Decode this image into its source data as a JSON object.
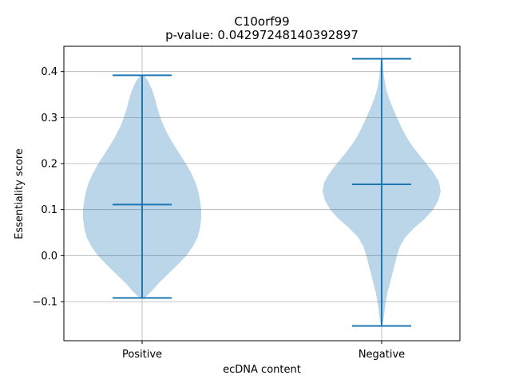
{
  "chart_data": {
    "type": "violin",
    "title": "C10orf99",
    "subtitle": "p-value: 0.04297248140392897",
    "xlabel": "ecDNA content",
    "ylabel": "Essentiality score",
    "categories": [
      "Positive",
      "Negative"
    ],
    "ylim": [
      -0.185,
      0.455
    ],
    "yticks": [
      -0.1,
      0.0,
      0.1,
      0.2,
      0.3,
      0.4
    ],
    "ytick_labels": [
      "−0.1",
      "0.0",
      "0.1",
      "0.2",
      "0.3",
      "0.4"
    ],
    "grid": true,
    "color": "#1f77b4",
    "fill_color": "#1f77b4",
    "fill_opacity": 0.3,
    "violins": [
      {
        "category": "Positive",
        "min": -0.092,
        "max": 0.392,
        "median": 0.111,
        "density": [
          [
            -0.092,
            0.04
          ],
          [
            -0.08,
            0.14
          ],
          [
            -0.06,
            0.28
          ],
          [
            -0.04,
            0.44
          ],
          [
            -0.02,
            0.6
          ],
          [
            0.0,
            0.75
          ],
          [
            0.02,
            0.86
          ],
          [
            0.04,
            0.94
          ],
          [
            0.06,
            0.98
          ],
          [
            0.08,
            1.0
          ],
          [
            0.1,
            1.0
          ],
          [
            0.12,
            0.98
          ],
          [
            0.14,
            0.95
          ],
          [
            0.16,
            0.9
          ],
          [
            0.18,
            0.83
          ],
          [
            0.2,
            0.74
          ],
          [
            0.22,
            0.64
          ],
          [
            0.24,
            0.54
          ],
          [
            0.26,
            0.45
          ],
          [
            0.28,
            0.37
          ],
          [
            0.3,
            0.31
          ],
          [
            0.32,
            0.26
          ],
          [
            0.34,
            0.22
          ],
          [
            0.36,
            0.17
          ],
          [
            0.38,
            0.1
          ],
          [
            0.392,
            0.03
          ]
        ]
      },
      {
        "category": "Negative",
        "min": -0.153,
        "max": 0.428,
        "median": 0.155,
        "density": [
          [
            -0.153,
            0.01
          ],
          [
            -0.14,
            0.03
          ],
          [
            -0.12,
            0.05
          ],
          [
            -0.1,
            0.07
          ],
          [
            -0.08,
            0.1
          ],
          [
            -0.06,
            0.14
          ],
          [
            -0.04,
            0.18
          ],
          [
            -0.02,
            0.22
          ],
          [
            0.0,
            0.26
          ],
          [
            0.02,
            0.31
          ],
          [
            0.04,
            0.4
          ],
          [
            0.06,
            0.55
          ],
          [
            0.08,
            0.73
          ],
          [
            0.1,
            0.87
          ],
          [
            0.12,
            0.96
          ],
          [
            0.14,
            1.0
          ],
          [
            0.16,
            0.97
          ],
          [
            0.18,
            0.88
          ],
          [
            0.2,
            0.76
          ],
          [
            0.22,
            0.63
          ],
          [
            0.24,
            0.51
          ],
          [
            0.26,
            0.41
          ],
          [
            0.28,
            0.33
          ],
          [
            0.3,
            0.26
          ],
          [
            0.32,
            0.19
          ],
          [
            0.34,
            0.13
          ],
          [
            0.36,
            0.08
          ],
          [
            0.38,
            0.05
          ],
          [
            0.4,
            0.03
          ],
          [
            0.42,
            0.02
          ],
          [
            0.428,
            0.01
          ]
        ]
      }
    ]
  }
}
